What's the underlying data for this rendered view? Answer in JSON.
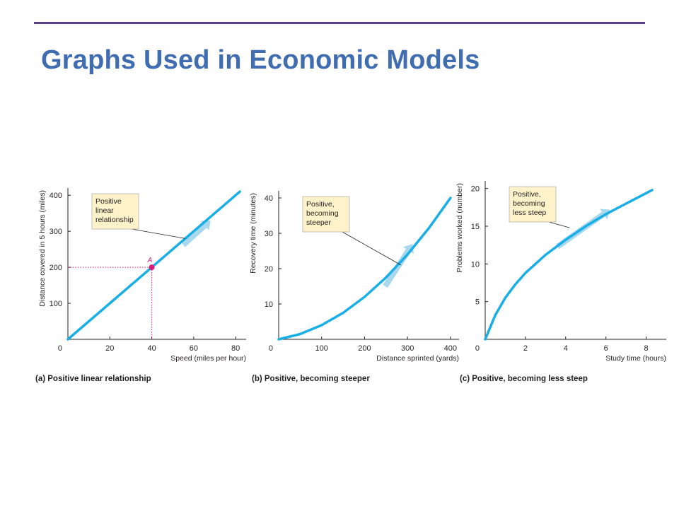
{
  "slide": {
    "title": "Graphs Used in Economic Models"
  },
  "colors": {
    "rule": "#5b3d86",
    "title": "#3f6db0",
    "curve": "#18aee6",
    "arrow": "#a9d8ee",
    "highlight": "#e0197d",
    "note_bg": "#fdf2c9",
    "note_border": "#b3b3b3",
    "axis": "#231f20"
  },
  "chart_data": [
    {
      "type": "line",
      "caption": "(a) Positive linear relationship",
      "xlabel": "Speed (miles per hour)",
      "ylabel": "Distance covered in 5 hours (miles)",
      "xlim": [
        0,
        85
      ],
      "ylim": [
        0,
        420
      ],
      "x_ticks": [
        {
          "v": 0,
          "label": "0"
        },
        {
          "v": 20,
          "label": "20"
        },
        {
          "v": 40,
          "label": "40",
          "highlight": true
        },
        {
          "v": 60,
          "label": "60"
        },
        {
          "v": 80,
          "label": "80"
        }
      ],
      "y_ticks": [
        {
          "v": 100,
          "label": "100"
        },
        {
          "v": 200,
          "label": "200",
          "highlight": true
        },
        {
          "v": 300,
          "label": "300"
        },
        {
          "v": 400,
          "label": "400"
        }
      ],
      "series": [
        {
          "x": [
            0,
            10,
            20,
            30,
            40,
            50,
            60,
            70,
            82
          ],
          "y": [
            0,
            50,
            100,
            150,
            200,
            250,
            300,
            350,
            410
          ]
        }
      ],
      "point": {
        "label": "A",
        "x": 40,
        "y": 200
      },
      "note": {
        "lines": [
          "Positive",
          "linear",
          "relationship"
        ],
        "target": {
          "x": 56,
          "y": 280
        }
      },
      "arrow": {
        "from": {
          "x": 55,
          "y": 262
        },
        "to": {
          "x": 68,
          "y": 330
        }
      }
    },
    {
      "type": "line",
      "caption": "(b) Positive, becoming steeper",
      "xlabel": "Distance sprinted (yards)",
      "ylabel": "Recovery time (minutes)",
      "xlim": [
        0,
        420
      ],
      "ylim": [
        0,
        42
      ],
      "x_ticks": [
        {
          "v": 0,
          "label": "0"
        },
        {
          "v": 100,
          "label": "100"
        },
        {
          "v": 200,
          "label": "200"
        },
        {
          "v": 300,
          "label": "300"
        },
        {
          "v": 400,
          "label": "400"
        }
      ],
      "y_ticks": [
        {
          "v": 10,
          "label": "10"
        },
        {
          "v": 20,
          "label": "20"
        },
        {
          "v": 30,
          "label": "30"
        },
        {
          "v": 40,
          "label": "40"
        }
      ],
      "series": [
        {
          "x": [
            0,
            50,
            100,
            150,
            200,
            250,
            300,
            350,
            400
          ],
          "y": [
            0,
            1.5,
            4,
            7.5,
            12,
            17.5,
            24,
            31.5,
            40
          ]
        }
      ],
      "note": {
        "lines": [
          "Positive,",
          "becoming",
          "steeper"
        ],
        "target": {
          "x": 285,
          "y": 21
        }
      },
      "arrow": {
        "from": {
          "x": 248,
          "y": 15
        },
        "to": {
          "x": 312,
          "y": 27
        }
      }
    },
    {
      "type": "line",
      "caption": "(c) Positive, becoming less steep",
      "xlabel": "Study time (hours)",
      "ylabel": "Problems worked (number)",
      "xlim": [
        0,
        9
      ],
      "ylim": [
        0,
        21
      ],
      "x_ticks": [
        {
          "v": 0,
          "label": "0"
        },
        {
          "v": 2,
          "label": "2"
        },
        {
          "v": 4,
          "label": "4"
        },
        {
          "v": 6,
          "label": "6"
        },
        {
          "v": 8,
          "label": "8"
        }
      ],
      "y_ticks": [
        {
          "v": 5,
          "label": "5"
        },
        {
          "v": 10,
          "label": "10"
        },
        {
          "v": 15,
          "label": "15"
        },
        {
          "v": 20,
          "label": "20"
        }
      ],
      "series": [
        {
          "x": [
            0,
            0.5,
            1,
            1.5,
            2,
            3,
            4,
            5,
            6,
            7,
            8.3
          ],
          "y": [
            0,
            3.2,
            5.5,
            7.3,
            8.8,
            11.2,
            13.2,
            15,
            16.6,
            18,
            19.8
          ]
        }
      ],
      "note": {
        "lines": [
          "Positive,",
          "becoming",
          "less steep"
        ],
        "target": {
          "x": 4.2,
          "y": 14.8
        }
      },
      "arrow": {
        "from": {
          "x": 3.6,
          "y": 12.3
        },
        "to": {
          "x": 6.2,
          "y": 17.2
        }
      }
    }
  ]
}
